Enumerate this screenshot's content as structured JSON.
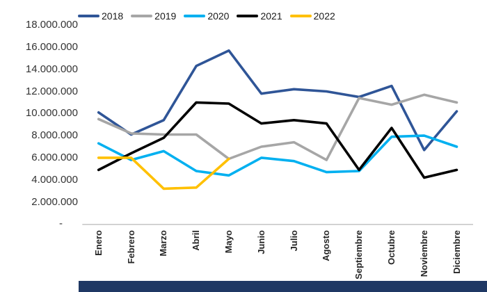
{
  "chart_data": {
    "type": "line",
    "title": "",
    "categories": [
      "Enero",
      "Febrero",
      "Marzo",
      "Abril",
      "Mayo",
      "Junio",
      "Julio",
      "Agosto",
      "Septiembre",
      "Octubre",
      "Noviembre",
      "Diciembre"
    ],
    "series": [
      {
        "name": "2018",
        "color": "#2F5597",
        "values": [
          10100000,
          8100000,
          9400000,
          14300000,
          15700000,
          11800000,
          12200000,
          12000000,
          11500000,
          12500000,
          6700000,
          10200000
        ]
      },
      {
        "name": "2019",
        "color": "#A6A6A6",
        "values": [
          9500000,
          8200000,
          8100000,
          8100000,
          5900000,
          7000000,
          7400000,
          5800000,
          11400000,
          10800000,
          11700000,
          11000000
        ]
      },
      {
        "name": "2020",
        "color": "#00B0F0",
        "values": [
          7300000,
          5800000,
          6600000,
          4800000,
          4400000,
          6000000,
          5700000,
          4700000,
          4800000,
          7900000,
          8000000,
          7000000
        ]
      },
      {
        "name": "2021",
        "color": "#000000",
        "values": [
          4900000,
          6400000,
          7800000,
          11000000,
          10900000,
          9100000,
          9400000,
          9100000,
          4900000,
          8700000,
          4200000,
          4900000
        ]
      },
      {
        "name": "2022",
        "color": "#FFC000",
        "values": [
          6000000,
          6000000,
          3200000,
          3300000,
          5900000,
          null,
          null,
          null,
          null,
          null,
          null,
          null
        ]
      }
    ],
    "ylim": [
      0,
      18000000
    ],
    "y_tick_interval": 2000000,
    "y_ticks": [
      {
        "value": 18000000,
        "label": "18.000.000"
      },
      {
        "value": 16000000,
        "label": "16.000.000"
      },
      {
        "value": 14000000,
        "label": "14.000.000"
      },
      {
        "value": 12000000,
        "label": "12.000.000"
      },
      {
        "value": 10000000,
        "label": "10.000.000"
      },
      {
        "value": 8000000,
        "label": "8.000.000"
      },
      {
        "value": 6000000,
        "label": "6.000.000"
      },
      {
        "value": 4000000,
        "label": "4.000.000"
      },
      {
        "value": 2000000,
        "label": "2.000.000"
      },
      {
        "value": 0,
        "label": "-"
      }
    ],
    "grid": false,
    "legend_position": "top",
    "axis_line_color": "#BFBFBF"
  },
  "footer_bar": {
    "color": "#1F3864"
  }
}
